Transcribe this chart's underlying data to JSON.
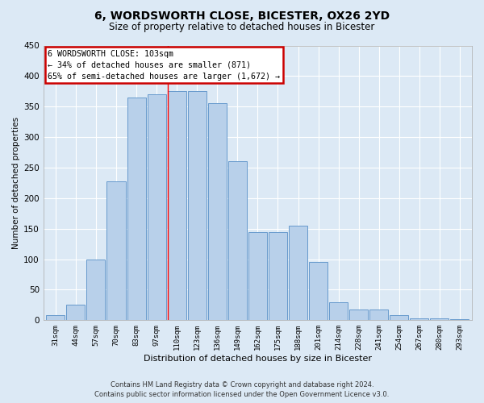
{
  "title": "6, WORDSWORTH CLOSE, BICESTER, OX26 2YD",
  "subtitle": "Size of property relative to detached houses in Bicester",
  "xlabel": "Distribution of detached houses by size in Bicester",
  "ylabel": "Number of detached properties",
  "footer_line1": "Contains HM Land Registry data © Crown copyright and database right 2024.",
  "footer_line2": "Contains public sector information licensed under the Open Government Licence v3.0.",
  "bar_labels": [
    "31sqm",
    "44sqm",
    "57sqm",
    "70sqm",
    "83sqm",
    "97sqm",
    "110sqm",
    "123sqm",
    "136sqm",
    "149sqm",
    "162sqm",
    "175sqm",
    "188sqm",
    "201sqm",
    "214sqm",
    "228sqm",
    "241sqm",
    "254sqm",
    "267sqm",
    "280sqm",
    "293sqm"
  ],
  "bar_values": [
    8,
    25,
    100,
    228,
    365,
    370,
    375,
    375,
    355,
    260,
    145,
    145,
    155,
    95,
    30,
    18,
    18,
    8,
    3,
    3,
    2
  ],
  "bar_color": "#b8d0ea",
  "bar_edge_color": "#6699cc",
  "bg_color": "#dce9f5",
  "plot_bg_color": "#dce9f5",
  "grid_color": "#ffffff",
  "annotation_text_line1": "6 WORDSWORTH CLOSE: 103sqm",
  "annotation_text_line2": "← 34% of detached houses are smaller (871)",
  "annotation_text_line3": "65% of semi-detached houses are larger (1,672) →",
  "annotation_box_color": "#cc0000",
  "red_line_x": 5.55,
  "ylim": [
    0,
    450
  ],
  "yticks": [
    0,
    50,
    100,
    150,
    200,
    250,
    300,
    350,
    400,
    450
  ]
}
